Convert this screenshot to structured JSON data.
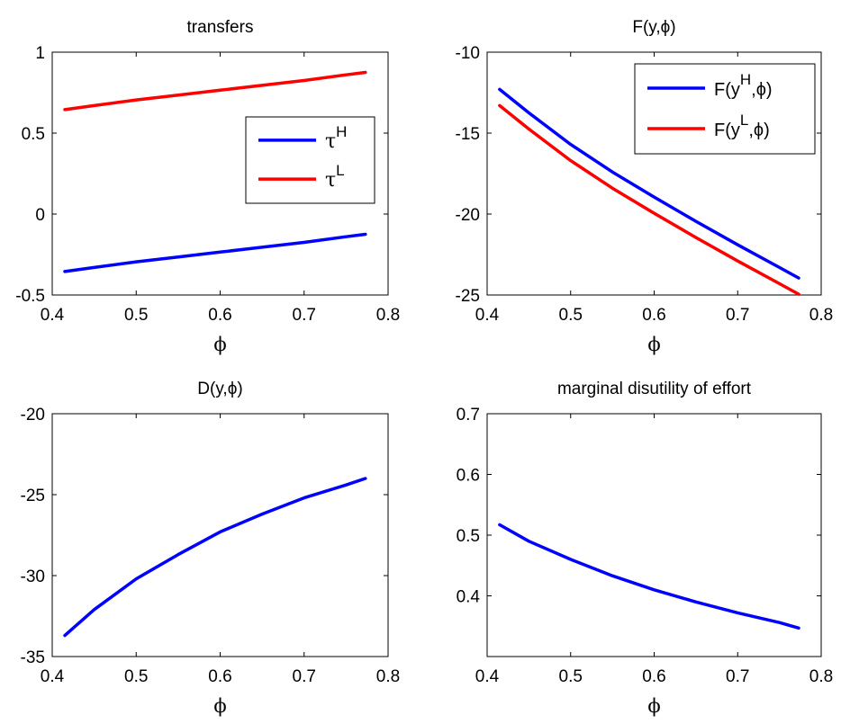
{
  "figure": {
    "panels": [
      "transfers",
      "F(y,ϕ)",
      "D(y,ϕ)",
      "marginal disutility of effort"
    ]
  },
  "chart_data": [
    {
      "type": "line",
      "title": "transfers",
      "xlabel": "ϕ",
      "ylabel": "",
      "xlim": [
        0.4,
        0.8
      ],
      "ylim": [
        -0.5,
        1
      ],
      "xticks": [
        0.4,
        0.5,
        0.6,
        0.7,
        0.8
      ],
      "yticks": [
        -0.5,
        0,
        0.5,
        1
      ],
      "xtick_labels": [
        "0.4",
        "0.5",
        "0.6",
        "0.7",
        "0.8"
      ],
      "ytick_labels": [
        "-0.5",
        "0",
        "0.5",
        "1"
      ],
      "grid": false,
      "legend_position": "right",
      "series": [
        {
          "name": "τH",
          "color": "#0000ff",
          "x": [
            0.415,
            0.45,
            0.5,
            0.55,
            0.6,
            0.65,
            0.7,
            0.75,
            0.773
          ],
          "y": [
            -0.355,
            -0.33,
            -0.295,
            -0.265,
            -0.235,
            -0.205,
            -0.175,
            -0.14,
            -0.125
          ]
        },
        {
          "name": "τL",
          "color": "#ff0000",
          "x": [
            0.415,
            0.45,
            0.5,
            0.55,
            0.6,
            0.65,
            0.7,
            0.75,
            0.773
          ],
          "y": [
            0.645,
            0.67,
            0.705,
            0.735,
            0.765,
            0.795,
            0.825,
            0.86,
            0.875
          ]
        }
      ],
      "legend": [
        {
          "base": "τ",
          "sup": "H",
          "color": "#0000ff"
        },
        {
          "base": "τ",
          "sup": "L",
          "color": "#ff0000"
        }
      ]
    },
    {
      "type": "line",
      "title": "F(y,ϕ)",
      "xlabel": "ϕ",
      "ylabel": "",
      "xlim": [
        0.4,
        0.8
      ],
      "ylim": [
        -25,
        -10
      ],
      "xticks": [
        0.4,
        0.5,
        0.6,
        0.7,
        0.8
      ],
      "yticks": [
        -25,
        -20,
        -15,
        -10
      ],
      "xtick_labels": [
        "0.4",
        "0.5",
        "0.6",
        "0.7",
        "0.8"
      ],
      "ytick_labels": [
        "-25",
        "-20",
        "-15",
        "-10"
      ],
      "grid": false,
      "legend_position": "top-right",
      "series": [
        {
          "name": "F(yH,ϕ)",
          "color": "#0000ff",
          "x": [
            0.415,
            0.45,
            0.5,
            0.55,
            0.6,
            0.65,
            0.7,
            0.75,
            0.773
          ],
          "y": [
            -12.3,
            -13.75,
            -15.7,
            -17.4,
            -18.95,
            -20.45,
            -21.9,
            -23.3,
            -23.95
          ]
        },
        {
          "name": "F(yL,ϕ)",
          "color": "#ff0000",
          "x": [
            0.415,
            0.45,
            0.5,
            0.55,
            0.6,
            0.65,
            0.7,
            0.75,
            0.773
          ],
          "y": [
            -13.3,
            -14.75,
            -16.7,
            -18.4,
            -19.95,
            -21.45,
            -22.9,
            -24.3,
            -24.95
          ]
        }
      ],
      "legend": [
        {
          "pre": "F(y",
          "sup": "H",
          "post": ",ϕ)",
          "color": "#0000ff"
        },
        {
          "pre": "F(y",
          "sup": "L",
          "post": ",ϕ)",
          "color": "#ff0000"
        }
      ]
    },
    {
      "type": "line",
      "title": "D(y,ϕ)",
      "xlabel": "ϕ",
      "ylabel": "",
      "xlim": [
        0.4,
        0.8
      ],
      "ylim": [
        -35,
        -20
      ],
      "xticks": [
        0.4,
        0.5,
        0.6,
        0.7,
        0.8
      ],
      "yticks": [
        -35,
        -30,
        -25,
        -20
      ],
      "xtick_labels": [
        "0.4",
        "0.5",
        "0.6",
        "0.7",
        "0.8"
      ],
      "ytick_labels": [
        "-35",
        "-30",
        "-25",
        "-20"
      ],
      "grid": false,
      "series": [
        {
          "name": "",
          "color": "#0000ff",
          "x": [
            0.415,
            0.45,
            0.5,
            0.55,
            0.6,
            0.65,
            0.7,
            0.75,
            0.773
          ],
          "y": [
            -33.7,
            -32.1,
            -30.2,
            -28.7,
            -27.3,
            -26.2,
            -25.2,
            -24.4,
            -24.0
          ]
        }
      ]
    },
    {
      "type": "line",
      "title": "marginal disutility of effort",
      "xlabel": "ϕ",
      "ylabel": "",
      "xlim": [
        0.4,
        0.8
      ],
      "ylim": [
        0.3,
        0.7
      ],
      "xticks": [
        0.4,
        0.5,
        0.6,
        0.7,
        0.8
      ],
      "yticks": [
        0.4,
        0.5,
        0.6,
        0.7
      ],
      "xtick_labels": [
        "0.4",
        "0.5",
        "0.6",
        "0.7",
        "0.8"
      ],
      "ytick_labels": [
        "0.4",
        "0.5",
        "0.6",
        "0.7"
      ],
      "grid": false,
      "series": [
        {
          "name": "",
          "color": "#0000ff",
          "x": [
            0.415,
            0.45,
            0.5,
            0.55,
            0.6,
            0.65,
            0.7,
            0.75,
            0.773
          ],
          "y": [
            0.517,
            0.49,
            0.46,
            0.433,
            0.41,
            0.39,
            0.372,
            0.356,
            0.347
          ]
        }
      ]
    }
  ]
}
